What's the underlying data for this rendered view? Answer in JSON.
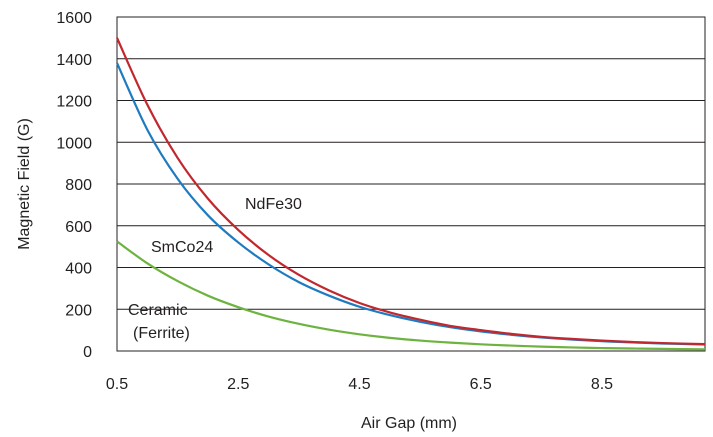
{
  "chart_data": {
    "type": "line",
    "xlabel": "Air Gap (mm)",
    "ylabel": "Magnetic Field (G)",
    "xlim": [
      0.5,
      10.2
    ],
    "ylim": [
      0,
      1600
    ],
    "xticks": [
      0.5,
      2.5,
      4.5,
      6.5,
      8.5
    ],
    "xtick_labels": [
      "0.5",
      "2.5",
      "4.5",
      "6.5",
      "8.5"
    ],
    "yticks": [
      0,
      200,
      400,
      600,
      800,
      1000,
      1200,
      1400,
      1600
    ],
    "ytick_labels": [
      "0",
      "200",
      "400",
      "600",
      "800",
      "1000",
      "1200",
      "1400",
      "1600"
    ],
    "grid": "horizontal",
    "series": [
      {
        "name": "NdFe30",
        "color": "#c1272d",
        "x": [
          0.5,
          1.0,
          1.5,
          2.0,
          2.5,
          3.0,
          3.5,
          4.0,
          4.5,
          5.0,
          5.5,
          6.0,
          6.5,
          7.0,
          7.5,
          8.0,
          8.5,
          9.0,
          9.5,
          10.2
        ],
        "values": [
          1500,
          1180,
          925,
          730,
          580,
          460,
          365,
          290,
          230,
          185,
          150,
          120,
          100,
          82,
          68,
          58,
          50,
          43,
          38,
          33
        ]
      },
      {
        "name": "SmCo24",
        "color": "#1f7bc1",
        "x": [
          0.5,
          1.0,
          1.5,
          2.0,
          2.5,
          3.0,
          3.5,
          4.0,
          4.5,
          5.0,
          5.5,
          6.0,
          6.5,
          7.0,
          7.5,
          8.0,
          8.5,
          9.0,
          9.5,
          10.2
        ],
        "values": [
          1380,
          1060,
          825,
          650,
          520,
          415,
          330,
          265,
          212,
          172,
          140,
          114,
          94,
          78,
          65,
          55,
          47,
          41,
          36,
          31
        ]
      },
      {
        "name": "Ceramic (Ferrite)",
        "label_lines": [
          "Ceramic",
          "(Ferrite)"
        ],
        "color": "#6db33f",
        "x": [
          0.5,
          1.0,
          1.5,
          2.0,
          2.5,
          3.0,
          3.5,
          4.0,
          4.5,
          5.0,
          5.5,
          6.0,
          6.5,
          7.0,
          7.5,
          8.0,
          8.5,
          9.0,
          9.5,
          10.2
        ],
        "values": [
          525,
          420,
          335,
          265,
          210,
          165,
          130,
          102,
          80,
          63,
          50,
          40,
          32,
          26,
          21,
          17,
          14,
          12,
          10,
          8
        ]
      }
    ]
  }
}
